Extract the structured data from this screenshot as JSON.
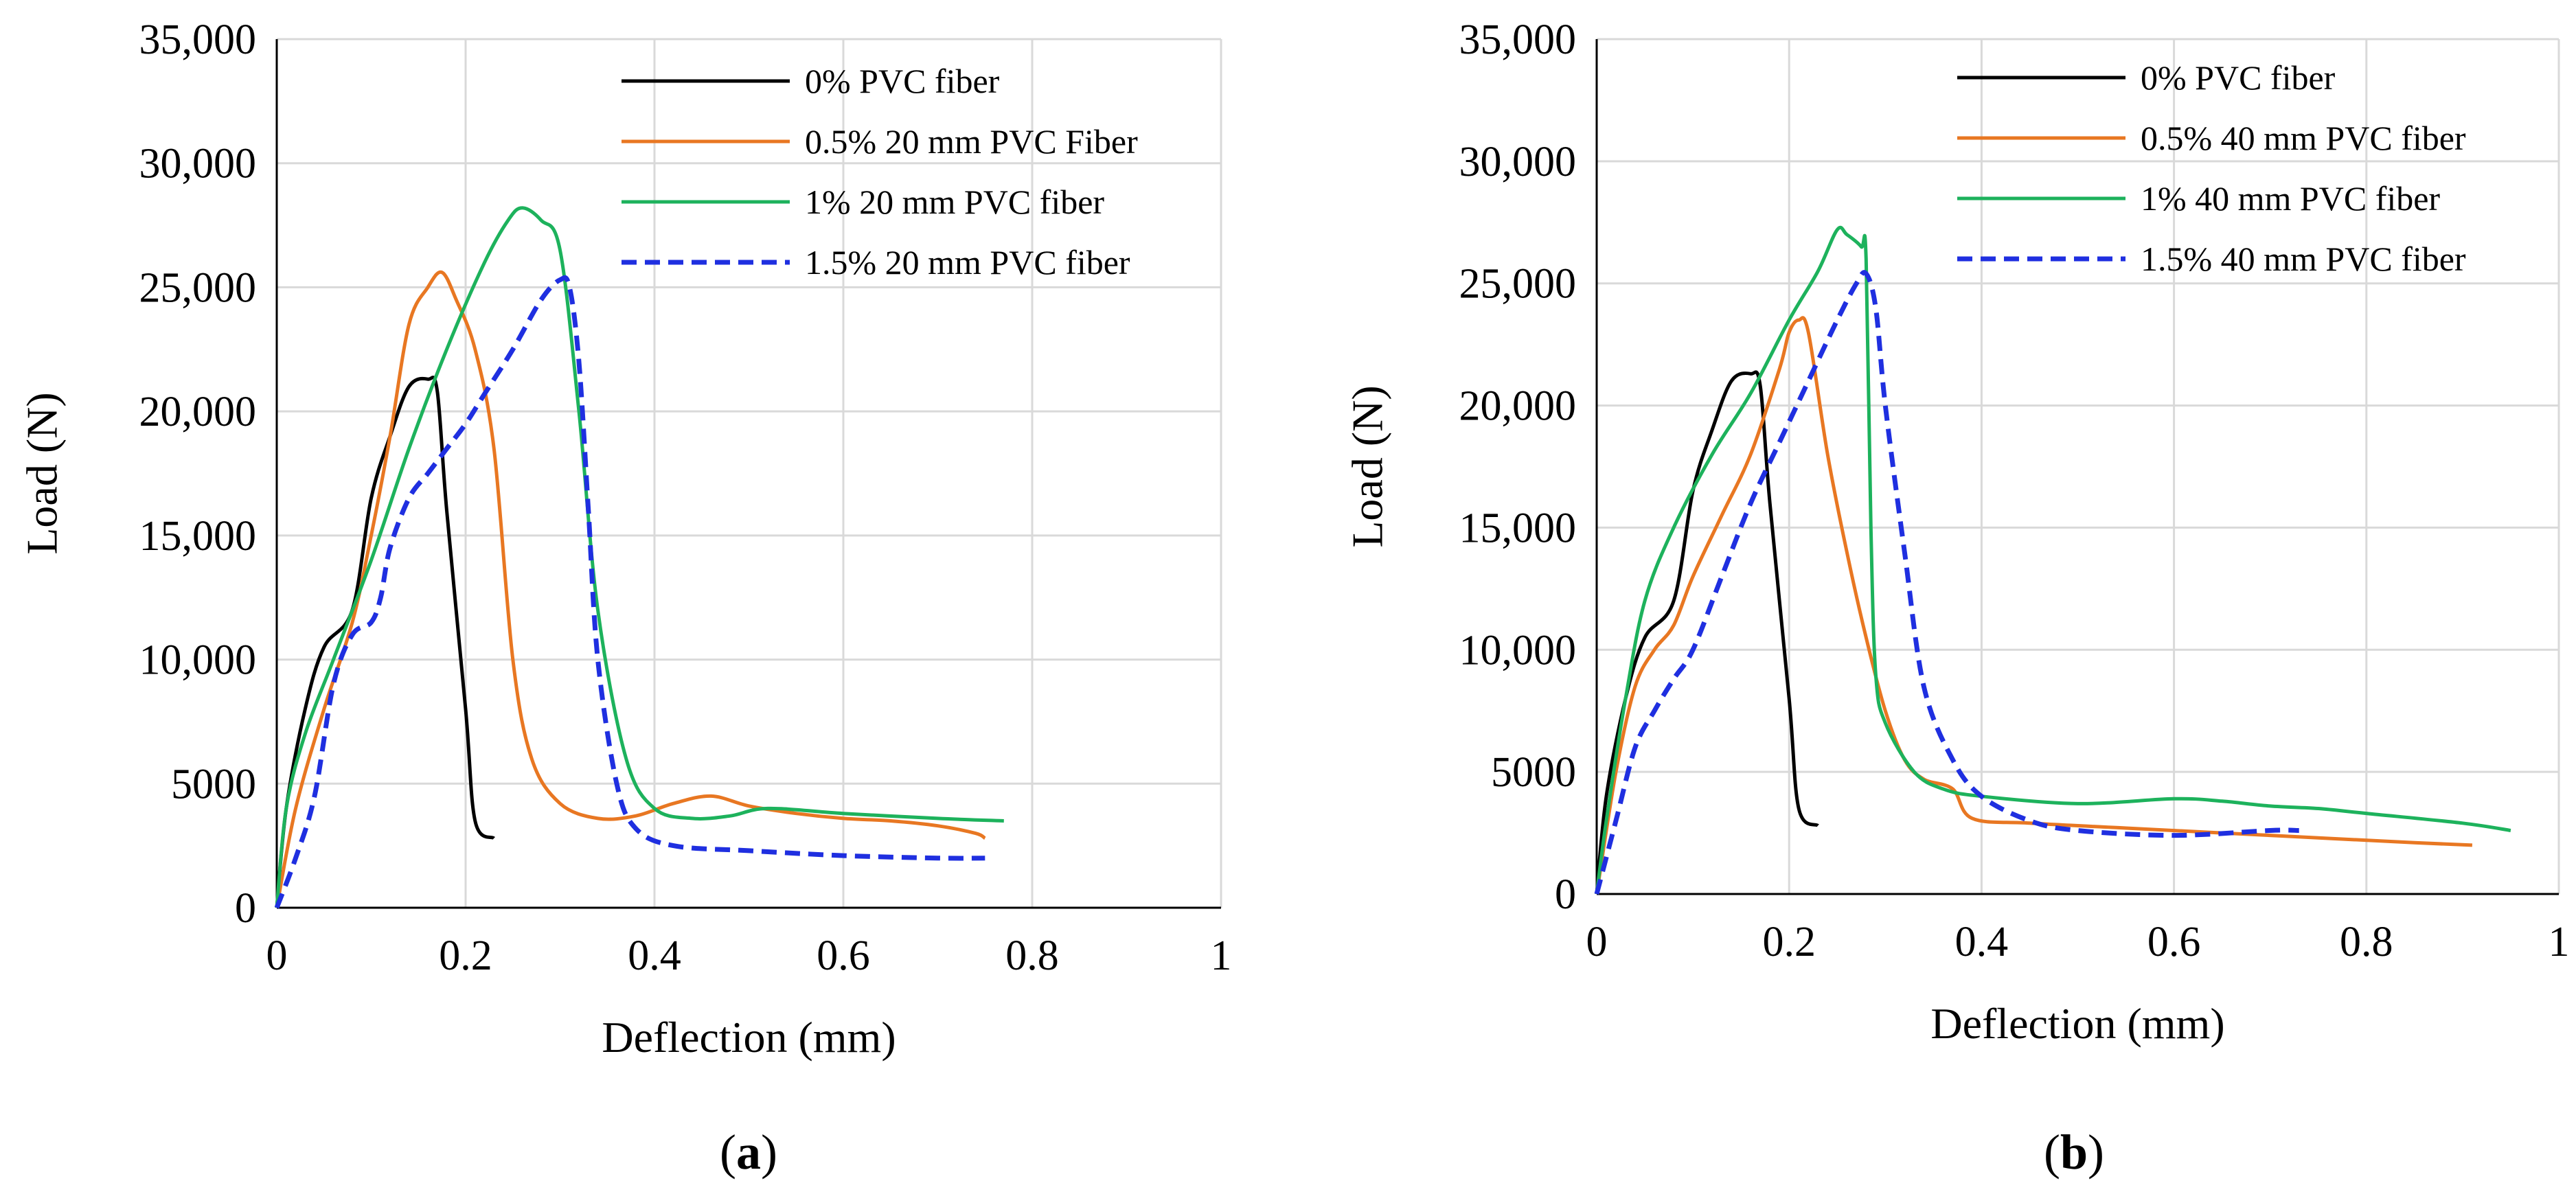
{
  "chart_data": [
    {
      "type": "line",
      "caption": "a",
      "xlabel": "Deflection (mm)",
      "ylabel": "Load (N)",
      "xlim": [
        0,
        1
      ],
      "ylim": [
        0,
        35000
      ],
      "xticks": [
        "0",
        "0.2",
        "0.4",
        "0.6",
        "0.8",
        "1"
      ],
      "yticks": [
        "0",
        "5000",
        "10,000",
        "15,000",
        "20,000",
        "25,000",
        "30,000",
        "35,000"
      ],
      "grid": true,
      "legend_position": "top-right",
      "series": [
        {
          "name": "0% PVC fiber",
          "color": "#000000",
          "dashed": false,
          "points": [
            [
              0,
              0
            ],
            [
              0.01,
              4000
            ],
            [
              0.03,
              8000
            ],
            [
              0.05,
              10500
            ],
            [
              0.08,
              12000
            ],
            [
              0.1,
              16500
            ],
            [
              0.12,
              19000
            ],
            [
              0.14,
              21000
            ],
            [
              0.16,
              21300
            ],
            [
              0.17,
              20800
            ],
            [
              0.18,
              16000
            ],
            [
              0.2,
              8000
            ],
            [
              0.21,
              3500
            ],
            [
              0.23,
              2800
            ]
          ]
        },
        {
          "name": "0.5% 20 mm PVC Fiber",
          "color": "#E87722",
          "dashed": false,
          "points": [
            [
              0,
              0
            ],
            [
              0.02,
              4000
            ],
            [
              0.05,
              8000
            ],
            [
              0.08,
              11500
            ],
            [
              0.1,
              15000
            ],
            [
              0.12,
              19000
            ],
            [
              0.14,
              23500
            ],
            [
              0.16,
              25000
            ],
            [
              0.175,
              25600
            ],
            [
              0.19,
              24500
            ],
            [
              0.21,
              22500
            ],
            [
              0.23,
              18500
            ],
            [
              0.25,
              10000
            ],
            [
              0.27,
              6000
            ],
            [
              0.3,
              4200
            ],
            [
              0.34,
              3600
            ],
            [
              0.38,
              3700
            ],
            [
              0.42,
              4200
            ],
            [
              0.46,
              4500
            ],
            [
              0.5,
              4100
            ],
            [
              0.55,
              3800
            ],
            [
              0.6,
              3600
            ],
            [
              0.65,
              3500
            ],
            [
              0.7,
              3300
            ],
            [
              0.74,
              3000
            ],
            [
              0.75,
              2800
            ]
          ]
        },
        {
          "name": "1% 20 mm PVC fiber",
          "color": "#1DB25C",
          "dashed": false,
          "points": [
            [
              0,
              0
            ],
            [
              0.01,
              4000
            ],
            [
              0.03,
              7000
            ],
            [
              0.06,
              10000
            ],
            [
              0.1,
              14000
            ],
            [
              0.14,
              18500
            ],
            [
              0.18,
              22500
            ],
            [
              0.22,
              26000
            ],
            [
              0.245,
              27700
            ],
            [
              0.26,
              28200
            ],
            [
              0.28,
              27700
            ],
            [
              0.3,
              26500
            ],
            [
              0.32,
              20000
            ],
            [
              0.34,
              12000
            ],
            [
              0.37,
              6000
            ],
            [
              0.4,
              4000
            ],
            [
              0.44,
              3600
            ],
            [
              0.48,
              3700
            ],
            [
              0.52,
              4000
            ],
            [
              0.6,
              3800
            ],
            [
              0.7,
              3600
            ],
            [
              0.77,
              3500
            ]
          ]
        },
        {
          "name": "1.5% 20 mm PVC fiber",
          "color": "#1F2FE0",
          "dashed": true,
          "points": [
            [
              0,
              0
            ],
            [
              0.02,
              2000
            ],
            [
              0.04,
              4500
            ],
            [
              0.06,
              9000
            ],
            [
              0.08,
              11000
            ],
            [
              0.1,
              11500
            ],
            [
              0.11,
              12500
            ],
            [
              0.12,
              14500
            ],
            [
              0.14,
              16500
            ],
            [
              0.16,
              17500
            ],
            [
              0.18,
              18500
            ],
            [
              0.2,
              19500
            ],
            [
              0.22,
              20700
            ],
            [
              0.25,
              22500
            ],
            [
              0.28,
              24500
            ],
            [
              0.3,
              25300
            ],
            [
              0.31,
              25000
            ],
            [
              0.32,
              22000
            ],
            [
              0.33,
              16000
            ],
            [
              0.34,
              10000
            ],
            [
              0.36,
              5000
            ],
            [
              0.38,
              3200
            ],
            [
              0.42,
              2500
            ],
            [
              0.5,
              2300
            ],
            [
              0.6,
              2100
            ],
            [
              0.7,
              2000
            ],
            [
              0.75,
              2000
            ]
          ]
        }
      ]
    },
    {
      "type": "line",
      "caption": "b",
      "xlabel": "Deflection (mm)",
      "ylabel": "Load (N)",
      "xlim": [
        0,
        1
      ],
      "ylim": [
        0,
        35000
      ],
      "xticks": [
        "0",
        "0.2",
        "0.4",
        "0.6",
        "0.8",
        "1"
      ],
      "yticks": [
        "0",
        "5000",
        "10,000",
        "15,000",
        "20,000",
        "25,000",
        "30,000",
        "35,000"
      ],
      "grid": true,
      "legend_position": "top-right",
      "series": [
        {
          "name": "0% PVC fiber",
          "color": "#000000",
          "dashed": false,
          "points": [
            [
              0,
              0
            ],
            [
              0.01,
              4000
            ],
            [
              0.03,
              8000
            ],
            [
              0.05,
              10500
            ],
            [
              0.08,
              12000
            ],
            [
              0.1,
              16500
            ],
            [
              0.12,
              19000
            ],
            [
              0.14,
              21000
            ],
            [
              0.16,
              21300
            ],
            [
              0.17,
              20800
            ],
            [
              0.18,
              16000
            ],
            [
              0.2,
              8000
            ],
            [
              0.21,
              3500
            ],
            [
              0.23,
              2800
            ]
          ]
        },
        {
          "name": "0.5% 40 mm PVC fiber",
          "color": "#E87722",
          "dashed": false,
          "points": [
            [
              0,
              0
            ],
            [
              0.02,
              5000
            ],
            [
              0.04,
              8500
            ],
            [
              0.06,
              10000
            ],
            [
              0.08,
              11000
            ],
            [
              0.1,
              13000
            ],
            [
              0.13,
              15500
            ],
            [
              0.16,
              18000
            ],
            [
              0.19,
              21500
            ],
            [
              0.2,
              23000
            ],
            [
              0.21,
              23500
            ],
            [
              0.22,
              23000
            ],
            [
              0.24,
              18000
            ],
            [
              0.26,
              14000
            ],
            [
              0.28,
              10500
            ],
            [
              0.3,
              7500
            ],
            [
              0.32,
              5500
            ],
            [
              0.34,
              4700
            ],
            [
              0.37,
              4300
            ],
            [
              0.39,
              3100
            ],
            [
              0.45,
              2900
            ],
            [
              0.55,
              2700
            ],
            [
              0.65,
              2500
            ],
            [
              0.75,
              2300
            ],
            [
              0.85,
              2100
            ],
            [
              0.91,
              2000
            ]
          ]
        },
        {
          "name": "1% 40 mm PVC fiber",
          "color": "#1DB25C",
          "dashed": false,
          "points": [
            [
              0,
              0
            ],
            [
              0.01,
              3000
            ],
            [
              0.03,
              8000
            ],
            [
              0.05,
              12000
            ],
            [
              0.08,
              15000
            ],
            [
              0.12,
              18000
            ],
            [
              0.16,
              20500
            ],
            [
              0.2,
              23500
            ],
            [
              0.23,
              25500
            ],
            [
              0.25,
              27200
            ],
            [
              0.26,
              27000
            ],
            [
              0.275,
              26500
            ],
            [
              0.28,
              26000
            ],
            [
              0.285,
              15000
            ],
            [
              0.29,
              9000
            ],
            [
              0.3,
              7000
            ],
            [
              0.33,
              5000
            ],
            [
              0.36,
              4300
            ],
            [
              0.4,
              4000
            ],
            [
              0.5,
              3700
            ],
            [
              0.6,
              3900
            ],
            [
              0.65,
              3800
            ],
            [
              0.7,
              3600
            ],
            [
              0.75,
              3500
            ],
            [
              0.8,
              3300
            ],
            [
              0.9,
              2900
            ],
            [
              0.95,
              2600
            ]
          ]
        },
        {
          "name": "1.5% 40 mm PVC fiber",
          "color": "#1F2FE0",
          "dashed": true,
          "points": [
            [
              0,
              0
            ],
            [
              0.02,
              3000
            ],
            [
              0.04,
              6000
            ],
            [
              0.06,
              7500
            ],
            [
              0.08,
              8800
            ],
            [
              0.1,
              10000
            ],
            [
              0.13,
              13000
            ],
            [
              0.16,
              16000
            ],
            [
              0.19,
              18500
            ],
            [
              0.22,
              21000
            ],
            [
              0.25,
              23500
            ],
            [
              0.27,
              25000
            ],
            [
              0.28,
              25400
            ],
            [
              0.29,
              24000
            ],
            [
              0.3,
              20000
            ],
            [
              0.32,
              14000
            ],
            [
              0.34,
              8500
            ],
            [
              0.37,
              5500
            ],
            [
              0.4,
              4000
            ],
            [
              0.45,
              3000
            ],
            [
              0.5,
              2600
            ],
            [
              0.6,
              2400
            ],
            [
              0.7,
              2600
            ],
            [
              0.73,
              2600
            ]
          ]
        }
      ]
    }
  ]
}
